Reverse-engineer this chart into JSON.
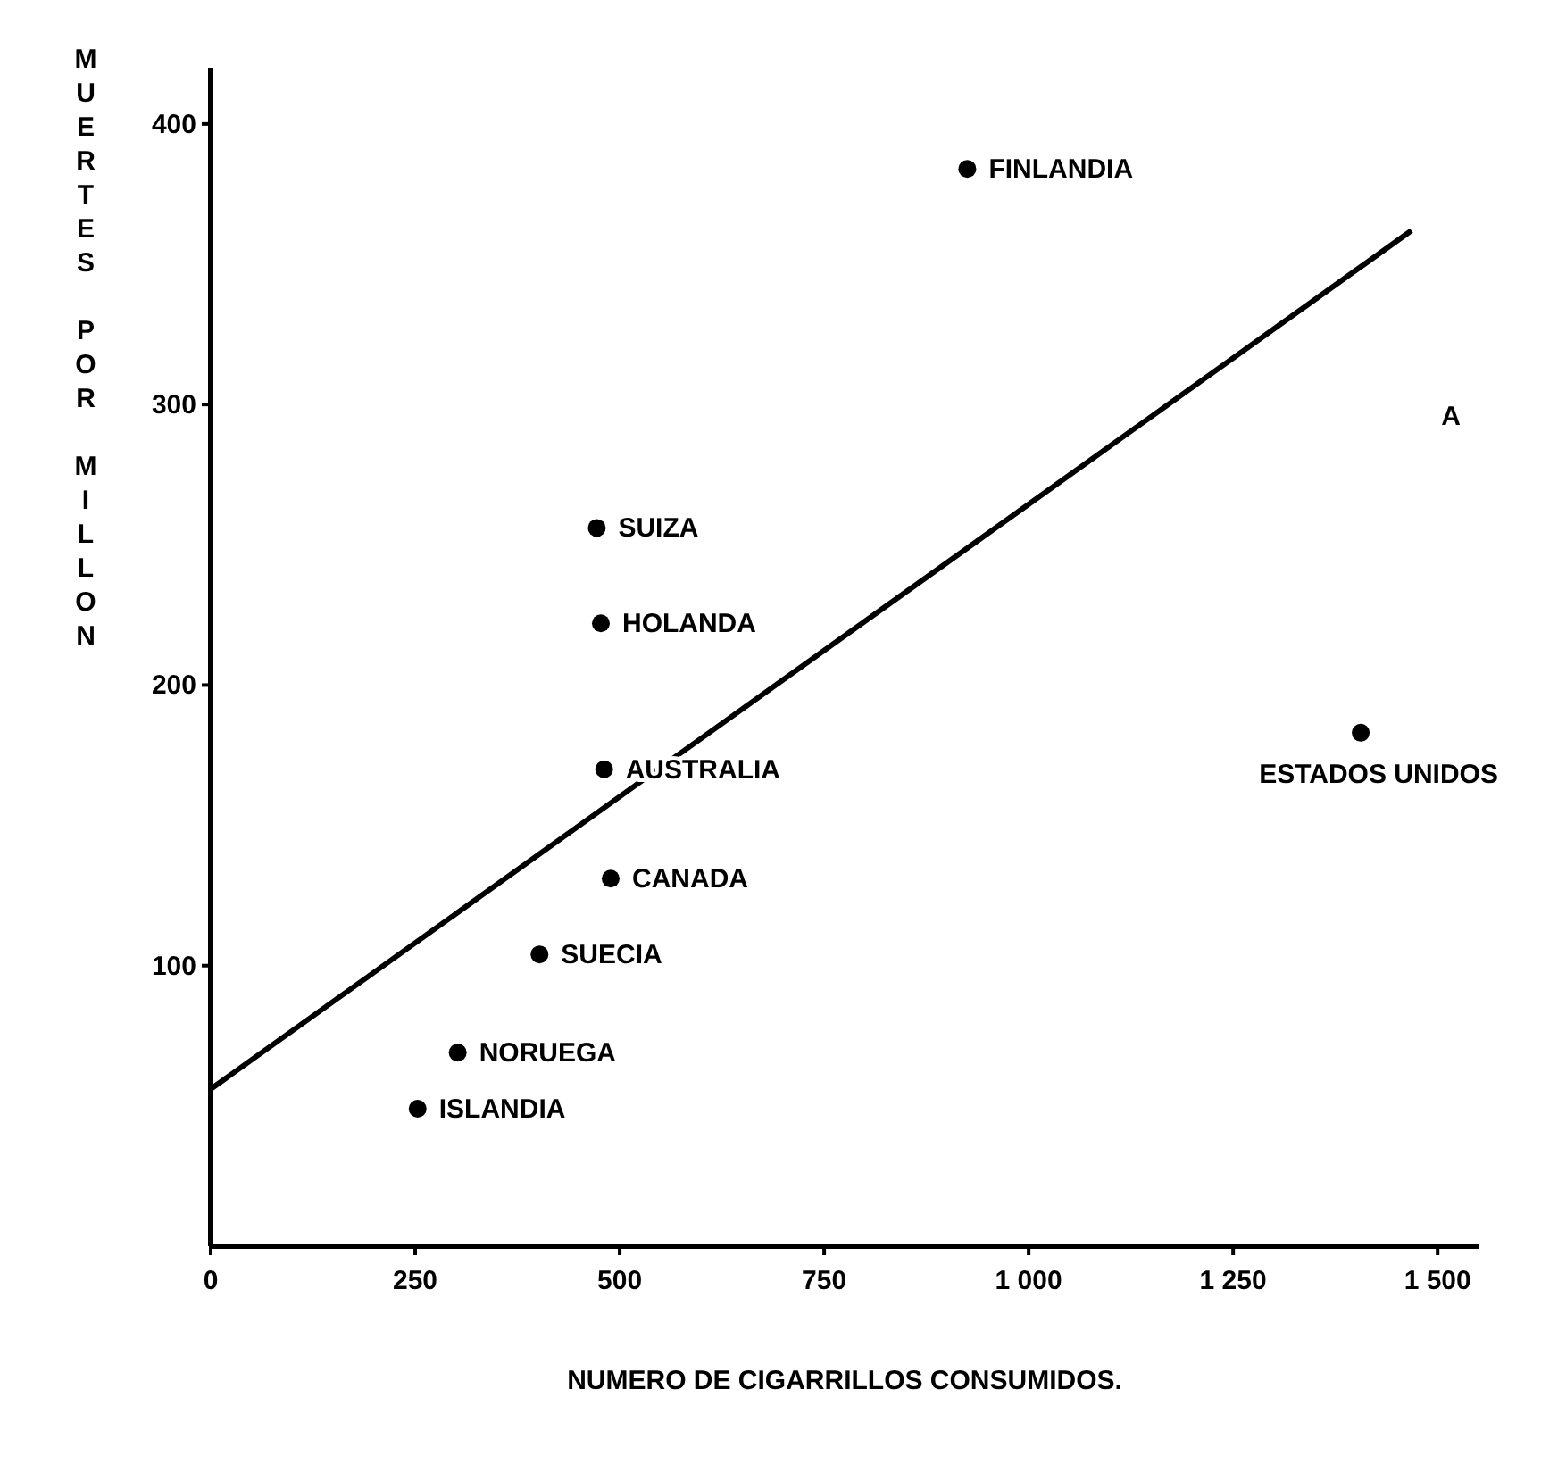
{
  "chart_data": {
    "type": "scatter",
    "xlabel": "NUMERO DE CIGARRILLOS CONSUMIDOS.",
    "ylabel": "MUERTES POR MILLON",
    "xlim": [
      0,
      1550
    ],
    "ylim": [
      0,
      420
    ],
    "xticks": [
      0,
      250,
      500,
      750,
      {
        "value": 1000,
        "label": "1 000"
      },
      {
        "value": 1250,
        "label": "1 250"
      },
      {
        "value": 1500,
        "label": "1 500"
      }
    ],
    "yticks": [
      100,
      200,
      300,
      400
    ],
    "grid": false,
    "marker": "circle",
    "series": [
      {
        "color": "#000000",
        "x": [
          925,
          472,
          477,
          481,
          489,
          402,
          302,
          253,
          1406
        ],
        "values": [
          384,
          256,
          222,
          170,
          131,
          104,
          69,
          49,
          183
        ]
      },
      {
        "type": "line",
        "color": "#000000",
        "marker": "none",
        "line_style": "solid",
        "x": [
          0,
          1468
        ],
        "values": [
          56,
          362
        ]
      }
    ],
    "annotations": [
      {
        "text": "FINLANDIA",
        "x": 925,
        "y": 384
      },
      {
        "text": "SUIZA",
        "x": 472,
        "y": 256
      },
      {
        "text": "HOLANDA",
        "x": 477,
        "y": 222
      },
      {
        "text": "AUSTRALIA",
        "x": 481,
        "y": 170
      },
      {
        "text": "CANADA",
        "x": 489,
        "y": 131
      },
      {
        "text": "SUECIA",
        "x": 402,
        "y": 104
      },
      {
        "text": "NORUEGA",
        "x": 302,
        "y": 69
      },
      {
        "text": "ISLANDIA",
        "x": 253,
        "y": 49
      },
      {
        "text": "ESTADOS UNIDOS",
        "x": 1406,
        "y": 183
      },
      "A"
    ]
  }
}
